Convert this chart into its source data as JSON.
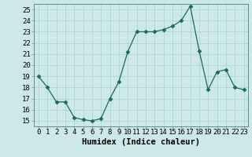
{
  "x": [
    0,
    1,
    2,
    3,
    4,
    5,
    6,
    7,
    8,
    9,
    10,
    11,
    12,
    13,
    14,
    15,
    16,
    17,
    18,
    19,
    20,
    21,
    22,
    23
  ],
  "y": [
    19,
    18,
    16.7,
    16.7,
    15.3,
    15.1,
    15.0,
    15.2,
    17.0,
    18.5,
    21.2,
    23.0,
    23.0,
    23.0,
    23.2,
    23.5,
    24.0,
    25.3,
    21.3,
    17.8,
    19.4,
    19.6,
    18.0,
    17.8
  ],
  "line_color": "#1a6b5a",
  "marker": "D",
  "marker_size": 2.5,
  "bg_color": "#cce8e8",
  "grid_color": "#aacfcf",
  "xlabel": "Humidex (Indice chaleur)",
  "xlim": [
    -0.5,
    23.5
  ],
  "ylim": [
    14.5,
    25.5
  ],
  "xticks": [
    0,
    1,
    2,
    3,
    4,
    5,
    6,
    7,
    8,
    9,
    10,
    11,
    12,
    13,
    14,
    15,
    16,
    17,
    18,
    19,
    20,
    21,
    22,
    23
  ],
  "yticks": [
    15,
    16,
    17,
    18,
    19,
    20,
    21,
    22,
    23,
    24,
    25
  ],
  "xlabel_fontsize": 7.5,
  "tick_fontsize": 6.5,
  "grid_major_color": "#c0d8d8",
  "grid_minor_color": "#d8ecec"
}
